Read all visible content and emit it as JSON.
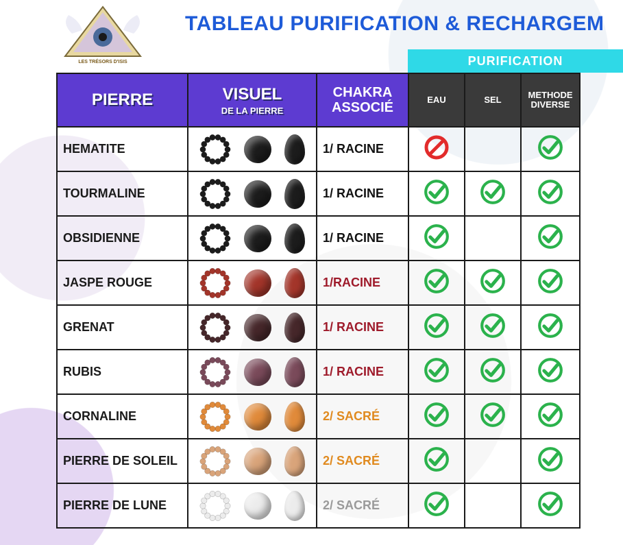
{
  "title": {
    "text": "TABLEAU PURIFICATION & RECHARGEM",
    "color": "#1e5bd8"
  },
  "section_band": {
    "label": "PURIFICATION",
    "bg": "#2fd9e7",
    "text_color": "#ffffff"
  },
  "header": {
    "bg_main": "#5d3bd1",
    "bg_small": "#3a3a3a",
    "cols": {
      "pierre": "PIERRE",
      "visuel": "VISUEL",
      "visuel_sub": "DE LA PIERRE",
      "chakra_l1": "CHAKRA",
      "chakra_l2": "ASSOCIÉ",
      "eau": "EAU",
      "sel": "SEL",
      "methodes_l1": "METHODE",
      "methodes_l2": "DIVERSE"
    }
  },
  "marks": {
    "check_color": "#2bb24c",
    "forbid_stroke": "#e22b2b"
  },
  "chakra_colors": {
    "racine_black": "#111111",
    "racine_red": "#9e1a2a",
    "sacre_orange": "#e08a1f",
    "sacre_grey": "#9a9a9a"
  },
  "visual_palette": {
    "black": "#1c1c1c",
    "darkgrey": "#4a4a4a",
    "red": "#a3352a",
    "darkred": "#5a1f1f",
    "garnet": "#46272a",
    "ruby": "#7a4a5a",
    "orange": "#e08a3a",
    "sunstone": "#d9a47a",
    "moonstone": "#ececec"
  },
  "rows": [
    {
      "name": "HEMATITE",
      "chakra": "1/ RACINE",
      "chakra_color": "racine_black",
      "visual": "black",
      "eau": "forbid",
      "sel": "",
      "methodes": "check"
    },
    {
      "name": "TOURMALINE",
      "chakra": "1/ RACINE",
      "chakra_color": "racine_black",
      "visual": "black",
      "eau": "check",
      "sel": "check",
      "methodes": "check"
    },
    {
      "name": "OBSIDIENNE",
      "chakra": "1/ RACINE",
      "chakra_color": "racine_black",
      "visual": "black",
      "eau": "check",
      "sel": "",
      "methodes": "check"
    },
    {
      "name": "JASPE ROUGE",
      "chakra": "1/RACINE",
      "chakra_color": "racine_red",
      "visual": "red",
      "eau": "check",
      "sel": "check",
      "methodes": "check"
    },
    {
      "name": "GRENAT",
      "chakra": "1/ RACINE",
      "chakra_color": "racine_red",
      "visual": "garnet",
      "eau": "check",
      "sel": "check",
      "methodes": "check"
    },
    {
      "name": "RUBIS",
      "chakra": "1/ RACINE",
      "chakra_color": "racine_red",
      "visual": "ruby",
      "eau": "check",
      "sel": "check",
      "methodes": "check"
    },
    {
      "name": "CORNALINE",
      "chakra": "2/ SACRÉ",
      "chakra_color": "sacre_orange",
      "visual": "orange",
      "eau": "check",
      "sel": "check",
      "methodes": "check"
    },
    {
      "name": "PIERRE DE SOLEIL",
      "chakra": "2/ SACRÉ",
      "chakra_color": "sacre_orange",
      "visual": "sunstone",
      "eau": "check",
      "sel": "",
      "methodes": "check"
    },
    {
      "name": "PIERRE DE LUNE",
      "chakra": "2/ SACRÉ",
      "chakra_color": "sacre_grey",
      "visual": "moonstone",
      "eau": "check",
      "sel": "",
      "methodes": "check"
    }
  ]
}
